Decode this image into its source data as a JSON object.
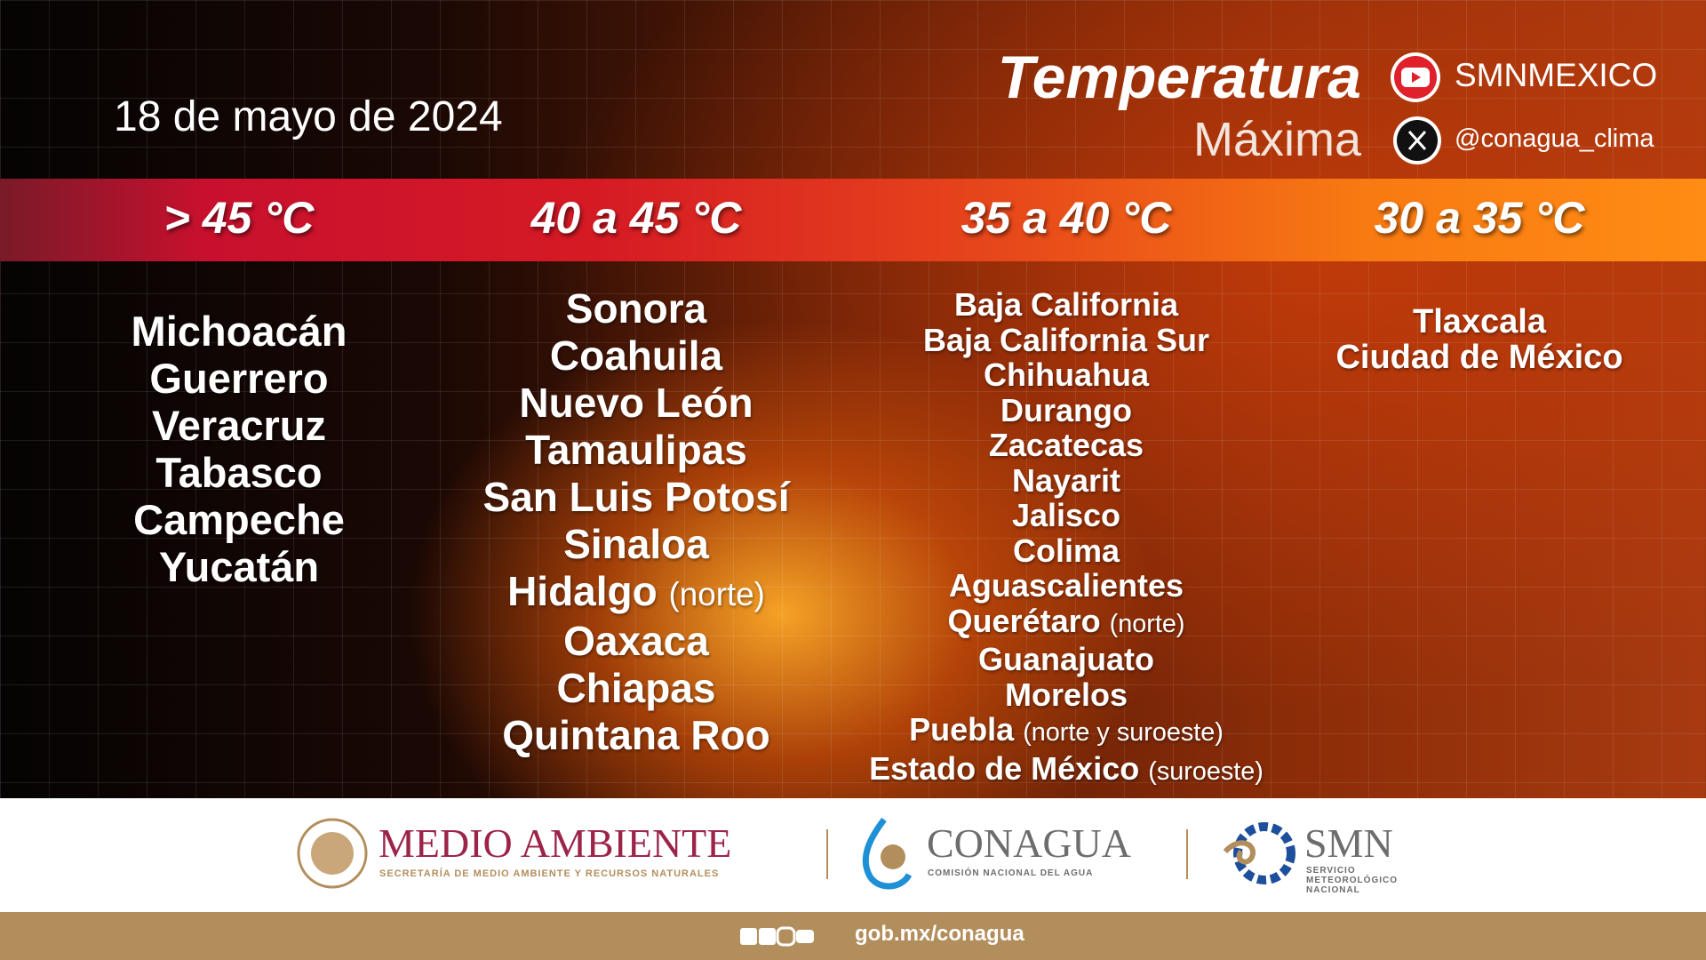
{
  "date": "18 de mayo de 2024",
  "title": "Temperatura",
  "subtitle": "Máxima",
  "social": [
    {
      "label": "SMNMEXICO"
    },
    {
      "label": "@conagua_clima"
    }
  ],
  "columns": [
    {
      "header": "> 45 °C",
      "states": [
        {
          "name": "Michoacán"
        },
        {
          "name": "Guerrero"
        },
        {
          "name": "Veracruz"
        },
        {
          "name": "Tabasco"
        },
        {
          "name": "Campeche"
        },
        {
          "name": "Yucatán"
        }
      ]
    },
    {
      "header": "40 a 45 °C",
      "states": [
        {
          "name": "Sonora"
        },
        {
          "name": "Coahuila"
        },
        {
          "name": "Nuevo León"
        },
        {
          "name": "Tamaulipas"
        },
        {
          "name": "San Luis Potosí"
        },
        {
          "name": "Sinaloa"
        },
        {
          "name": "Hidalgo",
          "note": "(norte)"
        },
        {
          "name": "Oaxaca"
        },
        {
          "name": "Chiapas"
        },
        {
          "name": "Quintana Roo"
        }
      ]
    },
    {
      "header": "35 a 40 °C",
      "states": [
        {
          "name": "Baja California"
        },
        {
          "name": "Baja California Sur"
        },
        {
          "name": "Chihuahua"
        },
        {
          "name": "Durango"
        },
        {
          "name": "Zacatecas"
        },
        {
          "name": "Nayarit"
        },
        {
          "name": "Jalisco"
        },
        {
          "name": "Colima"
        },
        {
          "name": "Aguascalientes"
        },
        {
          "name": "Querétaro",
          "note": "(norte)"
        },
        {
          "name": "Guanajuato"
        },
        {
          "name": "Morelos"
        },
        {
          "name": "Puebla",
          "note": "(norte y suroeste)"
        },
        {
          "name": "Estado de México",
          "note": "(suroeste)"
        }
      ]
    },
    {
      "header": "30 a 35 °C",
      "states": [
        {
          "name": "Tlaxcala"
        },
        {
          "name": "Ciudad de México"
        }
      ]
    }
  ],
  "footer": {
    "semarnat": {
      "name": "MEDIO AMBIENTE",
      "tagline": "SECRETARÍA DE MEDIO AMBIENTE Y RECURSOS NATURALES"
    },
    "conagua": {
      "name": "CONAGUA",
      "tagline": "COMISIÓN NACIONAL DEL AGUA"
    },
    "smn": {
      "name": "SMN",
      "tagline": [
        "SERVICIO",
        "METEOROLÓGICO",
        "NACIONAL"
      ]
    },
    "url": "gob.mx/conagua"
  }
}
